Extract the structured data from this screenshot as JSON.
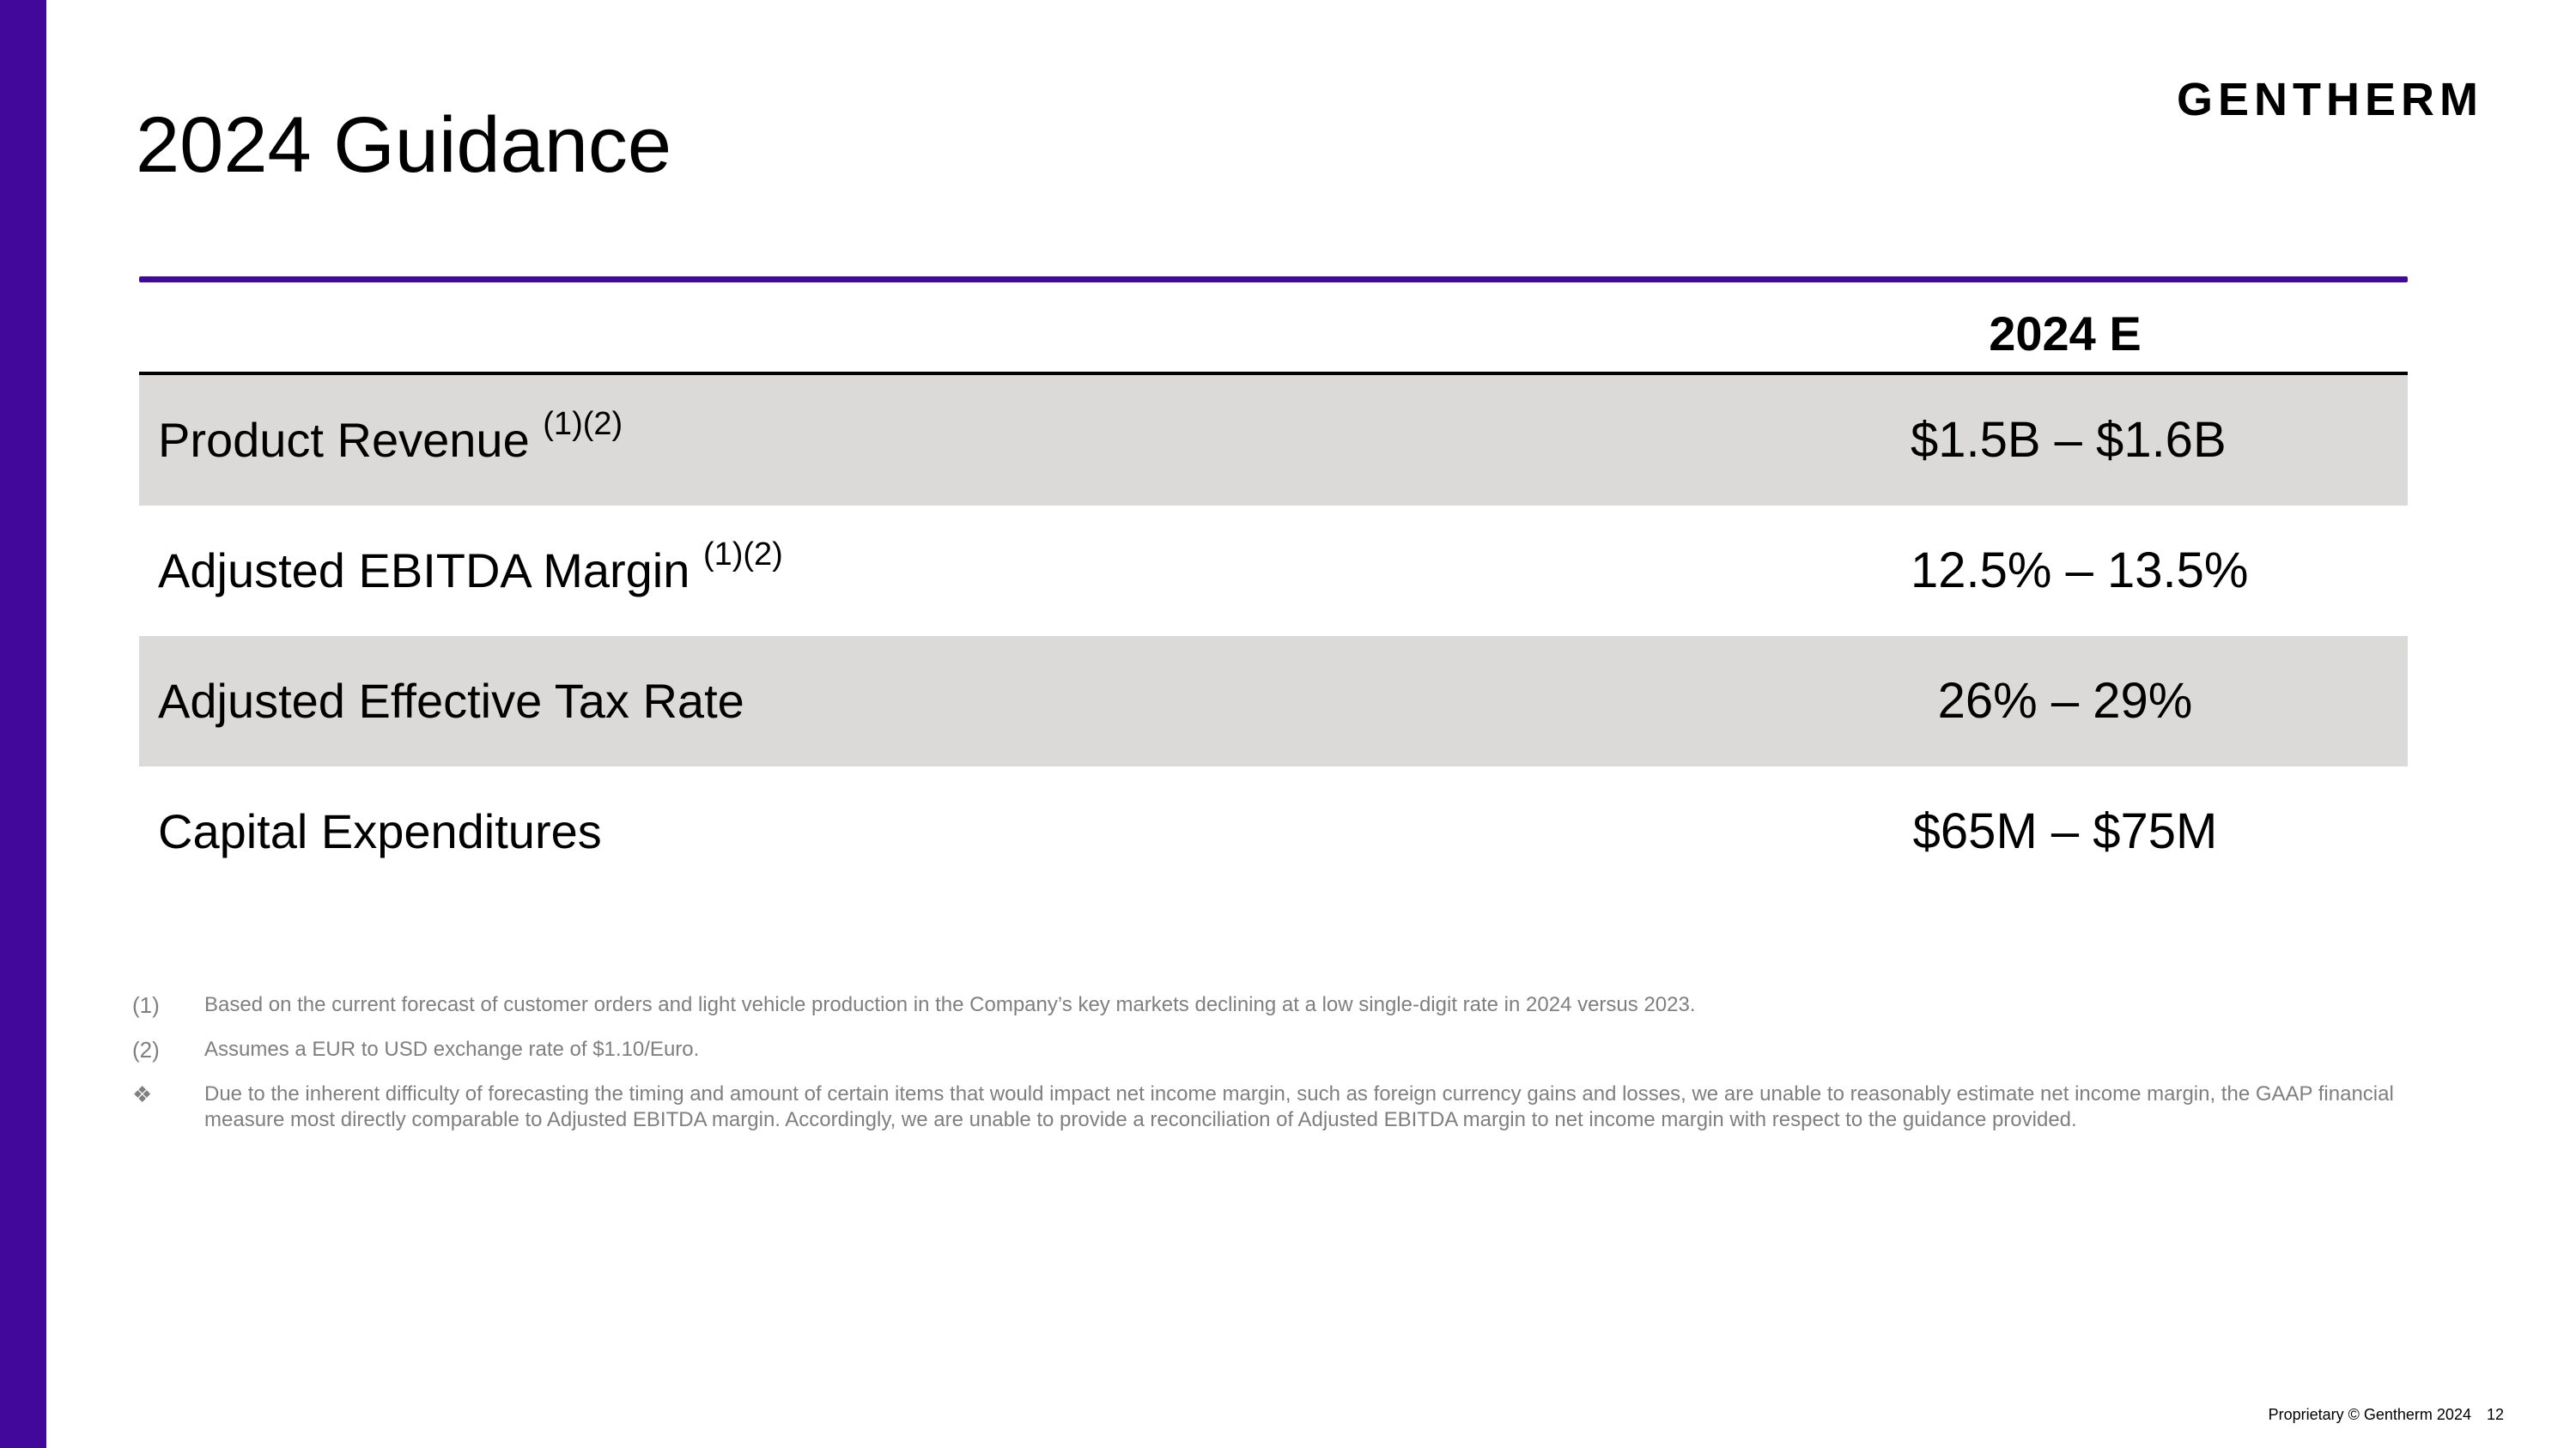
{
  "brand": {
    "logo_text": "GENTHERM",
    "accent_color": "#42079b"
  },
  "header": {
    "title": "2024 Guidance"
  },
  "table": {
    "column_header": "2024 E",
    "rows": [
      {
        "label": "Product Revenue",
        "superscript": "(1)(2)",
        "value": "$1.5B – $1.6B",
        "shaded": true
      },
      {
        "label": "Adjusted EBITDA Margin",
        "superscript": "(1)(2)",
        "value": "12.5% – 13.5%",
        "shaded": false
      },
      {
        "label": "Adjusted Effective Tax Rate",
        "superscript": "",
        "value": "26% – 29%",
        "shaded": true
      },
      {
        "label": "Capital Expenditures",
        "superscript": "",
        "value": "$65M – $75M",
        "shaded": false
      }
    ],
    "shade_color": "#dbdad8"
  },
  "footnotes": [
    {
      "marker": "(1)",
      "text": "Based on the current forecast of customer orders and light vehicle production in the Company’s key markets declining at a low single-digit rate in 2024 versus 2023."
    },
    {
      "marker": "(2)",
      "text": "Assumes a EUR to USD exchange rate of $1.10/Euro."
    },
    {
      "marker": "❖",
      "text": "Due to the inherent difficulty of forecasting the timing and amount of certain items that would impact net income margin, such as foreign currency gains and losses, we are unable to reasonably estimate net income margin, the GAAP financial measure most directly comparable to Adjusted EBITDA margin. Accordingly, we are unable to provide a reconciliation of Adjusted EBITDA margin to net income margin with respect to the guidance provided."
    }
  ],
  "footer": {
    "copyright": "Proprietary © Gentherm 2024",
    "page_number": "12"
  }
}
